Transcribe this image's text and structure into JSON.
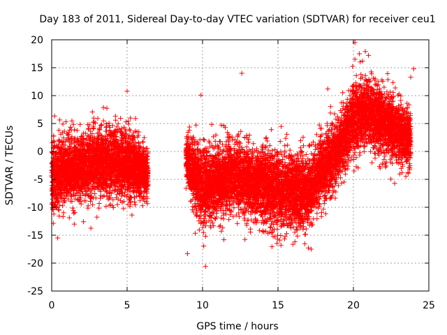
{
  "chart_data": {
    "type": "scatter",
    "title": "Day 183 of 2011, Sidereal Day-to-day VTEC variation (SDTVAR) for receiver ceu1",
    "xlabel": "GPS time / hours",
    "ylabel": "SDTVAR / TECUs",
    "xlim": [
      0,
      25
    ],
    "ylim": [
      -25,
      20
    ],
    "xticks": [
      0,
      5,
      10,
      15,
      20,
      25
    ],
    "yticks": [
      -25,
      -20,
      -15,
      -10,
      -5,
      0,
      5,
      10,
      15,
      20
    ],
    "xtick_labels": [
      "0",
      "5",
      "10",
      "15",
      "20",
      "25"
    ],
    "ytick_labels": [
      "-25",
      "-20",
      "-15",
      "-10",
      "-5",
      "0",
      "5",
      "10",
      "15",
      "20"
    ],
    "grid": true,
    "marker": "+",
    "color": "#ff0000",
    "series": [
      {
        "name": "SDTVAR",
        "segments": [
          {
            "x_start": 0.0,
            "x_end": 6.4,
            "profile": [
              [
                0.0,
                -4,
                4.5
              ],
              [
                1.0,
                -3.5,
                4
              ],
              [
                2.0,
                -3,
                4
              ],
              [
                3.0,
                -2,
                4
              ],
              [
                4.0,
                -1.5,
                4
              ],
              [
                5.0,
                -2,
                4
              ],
              [
                5.6,
                -3,
                3.5
              ],
              [
                6.4,
                -4,
                2.5
              ]
            ]
          },
          {
            "x_start": 8.9,
            "x_end": 23.8,
            "profile": [
              [
                8.9,
                -1,
                3
              ],
              [
                9.5,
                -4,
                4
              ],
              [
                10.0,
                -7,
                5
              ],
              [
                11.0,
                -5,
                4
              ],
              [
                12.0,
                -4,
                4
              ],
              [
                13.0,
                -5,
                4
              ],
              [
                14.0,
                -6,
                4.5
              ],
              [
                15.0,
                -7,
                4.5
              ],
              [
                16.0,
                -7.5,
                4.5
              ],
              [
                17.0,
                -7,
                4
              ],
              [
                18.0,
                -3,
                4
              ],
              [
                19.0,
                0,
                3.5
              ],
              [
                19.5,
                3,
                3.5
              ],
              [
                20.0,
                6,
                4
              ],
              [
                21.0,
                7,
                4
              ],
              [
                22.0,
                5,
                4
              ],
              [
                23.0,
                3.5,
                3.5
              ],
              [
                23.8,
                2,
                3
              ]
            ]
          }
        ],
        "extremes": [
          [
            20.1,
            19.5
          ],
          [
            20.4,
            17.5
          ],
          [
            21.0,
            17.2
          ],
          [
            20.1,
            16.5
          ],
          [
            24.0,
            14.8
          ],
          [
            23.8,
            13.3
          ],
          [
            12.6,
            14.0
          ],
          [
            18.3,
            11.2
          ],
          [
            5.0,
            10.8
          ],
          [
            9.9,
            10.1
          ],
          [
            10.2,
            -20.6
          ],
          [
            9.0,
            -18.3
          ],
          [
            0.4,
            -15.5
          ],
          [
            15.2,
            -16.8
          ],
          [
            17.2,
            -17.5
          ]
        ]
      }
    ]
  }
}
